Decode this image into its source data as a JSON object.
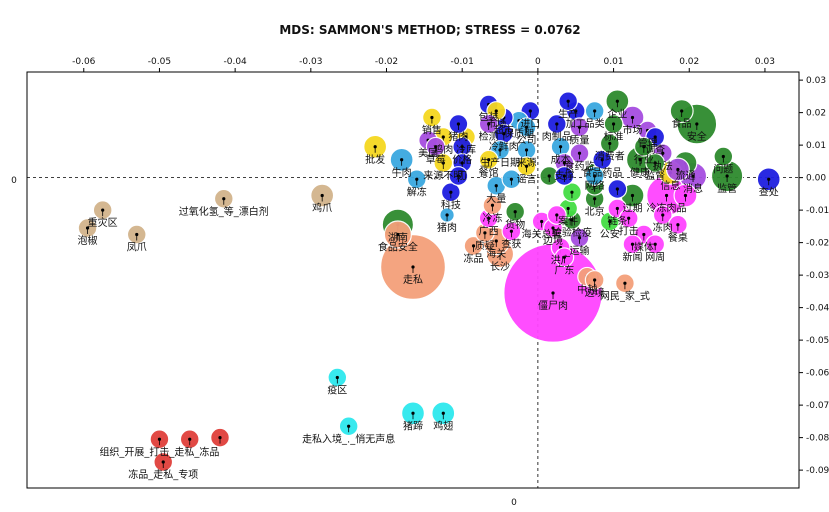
{
  "chart_data": {
    "type": "scatter",
    "title": "MDS: SAMMON'S METHOD; STRESS = 0.0762",
    "xlabel": "",
    "ylabel": "",
    "xlim": [
      -0.0675,
      0.0345
    ],
    "ylim": [
      -0.0955,
      0.0325
    ],
    "x_ticks": [
      -0.06,
      -0.05,
      -0.04,
      -0.03,
      -0.02,
      -0.01,
      0,
      0.01,
      0.02,
      0.03
    ],
    "x_tick_labels": [
      "-0.06",
      "-0.05",
      "-0.04",
      "-0.03",
      "-0.02",
      "-0.01",
      "0",
      "0.01",
      "0.02",
      "0.03"
    ],
    "y_ticks": [
      0.03,
      0.02,
      0.01,
      0,
      -0.01,
      -0.02,
      -0.03,
      -0.04,
      -0.05,
      -0.06,
      -0.07,
      -0.08,
      -0.09
    ],
    "y_tick_labels": [
      "0.03",
      "0.02",
      "0.01",
      "0.00",
      "-0.01",
      "-0.02",
      "-0.03",
      "-0.04",
      "-0.05",
      "-0.06",
      "-0.07",
      "-0.08",
      "-0.09"
    ],
    "left_axis_label": "0",
    "bottom_axis_label": "0",
    "grid": false,
    "colors": {
      "tan": "#d2b48c",
      "salmon": "#f4a07a",
      "red": "#e0403a",
      "cyan": "#2ee8ee",
      "magenta": "#ff44ff",
      "green": "#2e8b2e",
      "yellow": "#f5d820",
      "blue": "#1e1ee0",
      "skyblue": "#3aa8e0",
      "lime": "#44dd44",
      "purple": "#a64ee0"
    },
    "points": [
      {
        "label": "重灾区",
        "x": -0.0575,
        "y": -0.01,
        "size": 3,
        "color": "tan"
      },
      {
        "label": "泡椒",
        "x": -0.0595,
        "y": -0.0155,
        "size": 3,
        "color": "tan"
      },
      {
        "label": "凤爪",
        "x": -0.053,
        "y": -0.0175,
        "size": 3,
        "color": "tan"
      },
      {
        "label": "过氧化氢_等_漂白剂",
        "x": -0.0415,
        "y": -0.0065,
        "size": 3,
        "color": "tan"
      },
      {
        "label": "鸡爪",
        "x": -0.0285,
        "y": -0.0055,
        "size": 4,
        "color": "tan"
      },
      {
        "label": "组织_开展_打击_走私_冻品",
        "x": -0.05,
        "y": -0.0805,
        "size": 3,
        "color": "red"
      },
      {
        "label": "",
        "x": -0.046,
        "y": -0.0805,
        "size": 3,
        "color": "red"
      },
      {
        "label": "",
        "x": -0.042,
        "y": -0.08,
        "size": 3,
        "color": "red"
      },
      {
        "label": "冻品_走私_专项",
        "x": -0.0495,
        "y": -0.0875,
        "size": 3,
        "color": "red"
      },
      {
        "label": "疫区",
        "x": -0.0265,
        "y": -0.0615,
        "size": 3,
        "color": "cyan"
      },
      {
        "label": "走私入境_._悄无声息",
        "x": -0.025,
        "y": -0.0765,
        "size": 3,
        "color": "cyan"
      },
      {
        "label": "猪蹄",
        "x": -0.0165,
        "y": -0.0725,
        "size": 4,
        "color": "cyan"
      },
      {
        "label": "鸡翅",
        "x": -0.0125,
        "y": -0.0725,
        "size": 4,
        "color": "cyan"
      },
      {
        "label": "走私",
        "x": -0.0165,
        "y": -0.0275,
        "size": 14,
        "color": "salmon"
      },
      {
        "label": "食品安全",
        "x": -0.0185,
        "y": -0.0175,
        "size": 5,
        "color": "salmon"
      },
      {
        "label": "湖南",
        "x": -0.0185,
        "y": -0.0145,
        "size": 6,
        "color": "green"
      },
      {
        "label": "解冻",
        "x": -0.016,
        "y": -0.0005,
        "size": 3,
        "color": "skyblue"
      },
      {
        "label": "科技",
        "x": -0.0115,
        "y": -0.0045,
        "size": 3,
        "color": "blue"
      },
      {
        "label": "猪肉",
        "x": -0.012,
        "y": -0.0115,
        "size": 2,
        "color": "skyblue"
      },
      {
        "label": "牛肉",
        "x": -0.018,
        "y": 0.0055,
        "size": 4,
        "color": "skyblue"
      },
      {
        "label": "批发",
        "x": -0.0215,
        "y": 0.0095,
        "size": 4,
        "color": "yellow"
      },
      {
        "label": "冻品",
        "x": -0.0085,
        "y": -0.021,
        "size": 3,
        "color": "salmon"
      },
      {
        "label": "质疑",
        "x": -0.007,
        "y": -0.017,
        "size": 3,
        "color": "salmon"
      },
      {
        "label": "长沙",
        "x": -0.005,
        "y": -0.0235,
        "size": 5,
        "color": "salmon"
      },
      {
        "label": "海关",
        "x": -0.0055,
        "y": -0.0195,
        "size": 5,
        "color": "salmon"
      },
      {
        "label": "广西",
        "x": -0.0065,
        "y": -0.0125,
        "size": 3,
        "color": "magenta"
      },
      {
        "label": "查获",
        "x": -0.0035,
        "y": -0.0165,
        "size": 3,
        "color": "magenta"
      },
      {
        "label": "冷冻",
        "x": -0.006,
        "y": -0.0085,
        "size": 3,
        "color": "salmon"
      },
      {
        "label": "货物",
        "x": -0.003,
        "y": -0.0105,
        "size": 3,
        "color": "green"
      },
      {
        "label": "海关总署",
        "x": 0.0005,
        "y": -0.0135,
        "size": 3,
        "color": "magenta"
      },
      {
        "label": "边境",
        "x": 0.002,
        "y": -0.0155,
        "size": 3,
        "color": "magenta"
      },
      {
        "label": "检验检疫",
        "x": 0.0045,
        "y": -0.013,
        "size": 3,
        "color": "green"
      },
      {
        "label": "案件",
        "x": 0.004,
        "y": -0.0095,
        "size": 3,
        "color": "lime"
      },
      {
        "label": "运输",
        "x": 0.0055,
        "y": -0.0185,
        "size": 3,
        "color": "purple"
      },
      {
        "label": "洪广",
        "x": 0.003,
        "y": -0.0215,
        "size": 3,
        "color": "magenta"
      },
      {
        "label": "广东",
        "x": 0.0035,
        "y": -0.0245,
        "size": 3,
        "color": "magenta"
      },
      {
        "label": "僵尸肉",
        "x": 0.002,
        "y": -0.0355,
        "size": 22,
        "color": "magenta"
      },
      {
        "label": "中越",
        "x": 0.0065,
        "y": -0.0305,
        "size": 3,
        "color": "salmon"
      },
      {
        "label": "边境",
        "x": 0.0075,
        "y": -0.0315,
        "size": 3,
        "color": "salmon"
      },
      {
        "label": "网民_家_式",
        "x": 0.0115,
        "y": -0.0325,
        "size": 3,
        "color": "salmon"
      },
      {
        "label": "北京",
        "x": 0.0075,
        "y": -0.0065,
        "size": 3,
        "color": "green"
      },
      {
        "label": "公安",
        "x": 0.0095,
        "y": -0.0135,
        "size": 3,
        "color": "lime"
      },
      {
        "label": "链条",
        "x": 0.0105,
        "y": -0.0095,
        "size": 3,
        "color": "magenta"
      },
      {
        "label": "打击",
        "x": 0.012,
        "y": -0.0125,
        "size": 3,
        "color": "magenta"
      },
      {
        "label": "过期",
        "x": 0.0125,
        "y": -0.0055,
        "size": 4,
        "color": "green"
      },
      {
        "label": "媒体",
        "x": 0.014,
        "y": -0.0175,
        "size": 3,
        "color": "magenta"
      },
      {
        "label": "新闻",
        "x": 0.0125,
        "y": -0.0205,
        "size": 3,
        "color": "magenta"
      },
      {
        "label": "网周",
        "x": 0.0155,
        "y": -0.0205,
        "size": 3,
        "color": "magenta"
      },
      {
        "label": "冷冻肉品",
        "x": 0.017,
        "y": -0.0055,
        "size": 8,
        "color": "magenta"
      },
      {
        "label": "冻肉",
        "x": 0.0165,
        "y": -0.0115,
        "size": 3,
        "color": "magenta"
      },
      {
        "label": "餐桌",
        "x": 0.0185,
        "y": -0.0145,
        "size": 3,
        "color": "magenta"
      },
      {
        "label": "查处",
        "x": 0.0305,
        "y": -0.0005,
        "size": 4,
        "color": "blue"
      },
      {
        "label": "监管",
        "x": 0.025,
        "y": 0.0005,
        "size": 6,
        "color": "green"
      },
      {
        "label": "问题",
        "x": 0.0245,
        "y": 0.0065,
        "size": 3,
        "color": "green"
      },
      {
        "label": "消息",
        "x": 0.0205,
        "y": 0.0005,
        "size": 5,
        "color": "purple"
      },
      {
        "label": "流通",
        "x": 0.0195,
        "y": 0.0045,
        "size": 4,
        "color": "green"
      },
      {
        "label": "信息",
        "x": 0.0175,
        "y": 0.0015,
        "size": 4,
        "color": "yellow"
      },
      {
        "label": "安全",
        "x": 0.021,
        "y": 0.0165,
        "size": 8,
        "color": "green"
      },
      {
        "label": "食品",
        "x": 0.019,
        "y": 0.0205,
        "size": 4,
        "color": "green"
      },
      {
        "label": "执法",
        "x": 0.0165,
        "y": 0.0075,
        "size": 3,
        "color": "purple"
      },
      {
        "label": "健康",
        "x": 0.0135,
        "y": 0.0055,
        "size": 5,
        "color": "green"
      },
      {
        "label": "市场",
        "x": 0.0125,
        "y": 0.0185,
        "size": 4,
        "color": "purple"
      },
      {
        "label": "管理",
        "x": 0.0145,
        "y": 0.0145,
        "size": 3,
        "color": "purple"
      },
      {
        "label": "调查",
        "x": 0.0155,
        "y": 0.0125,
        "size": 3,
        "color": "blue"
      },
      {
        "label": "行业",
        "x": 0.014,
        "y": 0.0095,
        "size": 3,
        "color": "green"
      },
      {
        "label": "监督",
        "x": 0.0155,
        "y": 0.0045,
        "size": 3,
        "color": "green"
      },
      {
        "label": "网络",
        "x": 0.0075,
        "y": 0.0015,
        "size": 3,
        "color": "green"
      },
      {
        "label": "食品药品",
        "x": 0.0085,
        "y": 0.0055,
        "size": 3,
        "color": "blue"
      },
      {
        "label": "标准",
        "x": 0.01,
        "y": 0.0165,
        "size": 3,
        "color": "green"
      },
      {
        "label": "企业",
        "x": 0.0105,
        "y": 0.0235,
        "size": 4,
        "color": "green"
      },
      {
        "label": "加工",
        "x": 0.005,
        "y": 0.0205,
        "size": 3,
        "color": "blue"
      },
      {
        "label": "质量",
        "x": 0.0055,
        "y": 0.0155,
        "size": 3,
        "color": "purple"
      },
      {
        "label": "消费者",
        "x": 0.0095,
        "y": 0.0105,
        "size": 3,
        "color": "green"
      },
      {
        "label": "生产",
        "x": 0.004,
        "y": 0.0235,
        "size": 3,
        "color": "blue"
      },
      {
        "label": "品类",
        "x": 0.0075,
        "y": 0.0205,
        "size": 3,
        "color": "skyblue"
      },
      {
        "label": "肉制品",
        "x": 0.0025,
        "y": 0.0165,
        "size": 3,
        "color": "blue"
      },
      {
        "label": "成本",
        "x": 0.003,
        "y": 0.0095,
        "size": 3,
        "color": "skyblue"
      },
      {
        "label": "食药监",
        "x": 0.0055,
        "y": 0.0075,
        "size": 3,
        "color": "purple"
      },
      {
        "label": "支撑",
        "x": 0.0035,
        "y": 0.0045,
        "size": 3,
        "color": "purple"
      },
      {
        "label": "进口",
        "x": -0.001,
        "y": 0.0205,
        "size": 3,
        "color": "blue"
      },
      {
        "label": "保质期",
        "x": -0.0025,
        "y": 0.0175,
        "size": 3,
        "color": "skyblue"
      },
      {
        "label": "公司",
        "x": -0.0015,
        "y": 0.0155,
        "size": 3,
        "color": "skyblue"
      },
      {
        "label": "来源",
        "x": -0.0015,
        "y": 0.0085,
        "size": 3,
        "color": "skyblue"
      },
      {
        "label": "谣言",
        "x": -0.0015,
        "y": 0.0035,
        "size": 3,
        "color": "yellow"
      },
      {
        "label": "超市",
        "x": -0.0045,
        "y": 0.0185,
        "size": 3,
        "color": "blue"
      },
      {
        "label": "冷鲜肉",
        "x": -0.0045,
        "y": 0.0135,
        "size": 3,
        "color": "blue"
      },
      {
        "label": "包装",
        "x": -0.0065,
        "y": 0.0225,
        "size": 3,
        "color": "blue"
      },
      {
        "label": "市场",
        "x": -0.0055,
        "y": 0.0205,
        "size": 3,
        "color": "yellow"
      },
      {
        "label": "检测",
        "x": -0.0065,
        "y": 0.0165,
        "size": 3,
        "color": "purple"
      },
      {
        "label": "生产日期",
        "x": -0.005,
        "y": 0.0085,
        "size": 3,
        "color": "skyblue"
      },
      {
        "label": "餐馆",
        "x": -0.0065,
        "y": 0.0055,
        "size": 3,
        "color": "yellow"
      },
      {
        "label": "冷库",
        "x": -0.0095,
        "y": 0.0125,
        "size": 3,
        "color": "yellow"
      },
      {
        "label": "价格",
        "x": -0.01,
        "y": 0.0095,
        "size": 3,
        "color": "blue"
      },
      {
        "label": "销售",
        "x": -0.014,
        "y": 0.0185,
        "size": 3,
        "color": "yellow"
      },
      {
        "label": "猪肉",
        "x": -0.0105,
        "y": 0.0165,
        "size": 3,
        "color": "blue"
      },
      {
        "label": "鸡肉",
        "x": -0.0125,
        "y": 0.0125,
        "size": 3,
        "color": "yellow"
      },
      {
        "label": "美国",
        "x": -0.0145,
        "y": 0.0115,
        "size": 3,
        "color": "purple"
      },
      {
        "label": "草莓",
        "x": -0.0135,
        "y": 0.0095,
        "size": 3,
        "color": "purple"
      },
      {
        "label": "来源不明",
        "x": -0.0125,
        "y": 0.0045,
        "size": 3,
        "color": "yellow"
      },
      {
        "label": "刀",
        "x": -0.01,
        "y": 0.0045,
        "size": 3,
        "color": "blue"
      },
      {
        "label": "大量",
        "x": -0.0055,
        "y": -0.0025,
        "size": 3,
        "color": "skyblue"
      },
      {
        "label": "",
        "x": -0.0035,
        "y": -0.0005,
        "size": 3,
        "color": "skyblue"
      },
      {
        "label": "",
        "x": -0.0105,
        "y": 0.0005,
        "size": 3,
        "color": "blue"
      },
      {
        "label": "",
        "x": 0.0015,
        "y": 0.0005,
        "size": 3,
        "color": "green"
      },
      {
        "label": "",
        "x": 0.0045,
        "y": -0.0045,
        "size": 3,
        "color": "lime"
      },
      {
        "label": "",
        "x": 0.0075,
        "y": -0.0025,
        "size": 3,
        "color": "green"
      },
      {
        "label": "",
        "x": 0.0105,
        "y": -0.0035,
        "size": 3,
        "color": "blue"
      },
      {
        "label": "",
        "x": 0.0075,
        "y": 0.0005,
        "size": 3,
        "color": "skyblue"
      },
      {
        "label": "",
        "x": 0.0035,
        "y": 0.0005,
        "size": 3,
        "color": "blue"
      },
      {
        "label": "",
        "x": 0.0185,
        "y": 0.0025,
        "size": 4,
        "color": "purple"
      },
      {
        "label": "",
        "x": 0.0195,
        "y": -0.0055,
        "size": 4,
        "color": "magenta"
      },
      {
        "label": "",
        "x": 0.0025,
        "y": -0.0115,
        "size": 3,
        "color": "magenta"
      }
    ]
  }
}
